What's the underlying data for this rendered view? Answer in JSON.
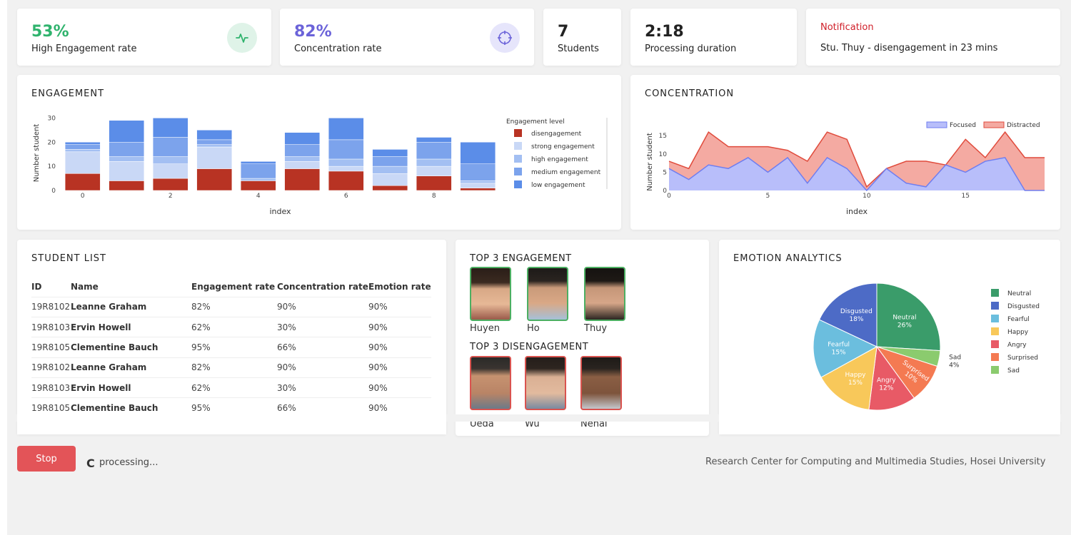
{
  "stats": {
    "engagement": {
      "value": "53%",
      "label": "High Engagement rate",
      "color": "#2fb36d"
    },
    "concentration": {
      "value": "82%",
      "label": "Concentration rate",
      "color": "#6b63d9"
    },
    "students": {
      "value": "7",
      "label": "Students"
    },
    "duration": {
      "value": "2:18",
      "label": "Processing duration"
    }
  },
  "notification": {
    "title": "Notification",
    "message": "Stu. Thuy - disengagement in 23 mins",
    "color": "#d0202a"
  },
  "engagement_title": "ENGAGEMENT",
  "concentration_title": "CONCENTRATION",
  "student_list": {
    "title": "STUDENT LIST",
    "columns": [
      "ID",
      "Name",
      "Engagement rate",
      "Concentration rate",
      "Emotion rate"
    ],
    "rows": [
      [
        "19R8102",
        "Leanne Graham",
        "82%",
        "90%",
        "90%"
      ],
      [
        "19R8103",
        "Ervin Howell",
        "62%",
        "30%",
        "90%"
      ],
      [
        "19R8105",
        "Clementine Bauch",
        "95%",
        "66%",
        "90%"
      ],
      [
        "19R8102",
        "Leanne Graham",
        "82%",
        "90%",
        "90%"
      ],
      [
        "19R8103",
        "Ervin Howell",
        "62%",
        "30%",
        "90%"
      ],
      [
        "19R8105",
        "Clementine Bauch",
        "95%",
        "66%",
        "90%"
      ]
    ]
  },
  "top_engagement": {
    "title": "TOP 3 ENGAGEMENT",
    "names": [
      "Huyen",
      "Ho",
      "Thuy"
    ]
  },
  "top_disengagement": {
    "title": "TOP 3 DISENGAGEMENT",
    "names": [
      "Ueda",
      "Wu",
      "Nehal"
    ]
  },
  "emotion_title": "EMOTION ANALYTICS",
  "controls": {
    "stop_label": "Stop",
    "spinner_glyph": "C",
    "status_text": "processing..."
  },
  "footer_text": "Research Center for Computing and Multimedia Studies, Hosei University",
  "chart_data": [
    {
      "type": "bar",
      "title": "",
      "xlabel": "index",
      "ylabel": "Number student",
      "legend_title": "Engagement level",
      "x": [
        0,
        1,
        2,
        3,
        4,
        5,
        6,
        7,
        8,
        9
      ],
      "xticks": [
        0,
        2,
        4,
        6,
        8
      ],
      "yticks": [
        0,
        10,
        20,
        30
      ],
      "ylim": [
        0,
        31
      ],
      "series": [
        {
          "name": "disengagement",
          "color": "#b83323",
          "values": [
            7,
            4,
            5,
            9,
            4,
            9,
            8,
            2,
            6,
            1
          ]
        },
        {
          "name": "strong engagement",
          "color": "#c9d8f6",
          "values": [
            9,
            8,
            6,
            9,
            0,
            3,
            2,
            5,
            4,
            2
          ]
        },
        {
          "name": "high engagement",
          "color": "#a3bff2",
          "values": [
            1,
            2,
            3,
            1,
            1,
            2,
            3,
            3,
            3,
            1
          ]
        },
        {
          "name": "medium engagement",
          "color": "#7ca3ec",
          "values": [
            2,
            6,
            8,
            2,
            6,
            5,
            8,
            4,
            7,
            7
          ]
        },
        {
          "name": "low engagement",
          "color": "#5b8de8",
          "values": [
            1,
            9,
            8,
            4,
            1,
            5,
            9,
            3,
            2,
            9
          ]
        }
      ]
    },
    {
      "type": "area",
      "title": "",
      "xlabel": "index",
      "ylabel": "Number student",
      "x": [
        0,
        1,
        2,
        3,
        4,
        5,
        6,
        7,
        8,
        9,
        10,
        11,
        12,
        13,
        14,
        15,
        16,
        17,
        18,
        19
      ],
      "xticks": [
        0,
        5,
        10,
        15
      ],
      "yticks": [
        0,
        5,
        10,
        15
      ],
      "ylim": [
        0,
        17
      ],
      "legend_position": "top-right",
      "series": [
        {
          "name": "Focused",
          "color": "#6f7ef0",
          "fill": "#b8befa",
          "values": [
            6,
            3,
            7,
            6,
            9,
            5,
            9,
            2,
            9,
            6,
            0,
            6,
            2,
            1,
            7,
            5,
            8,
            9,
            0,
            0
          ]
        },
        {
          "name": "Distracted",
          "color": "#e04b3c",
          "fill": "#f4aaa2",
          "values": [
            8,
            6,
            16,
            12,
            12,
            12,
            11,
            8,
            16,
            14,
            1,
            6,
            8,
            8,
            7,
            14,
            9,
            16,
            9,
            9
          ]
        }
      ]
    },
    {
      "type": "pie",
      "title": "",
      "slices": [
        {
          "label": "Neutral",
          "value": 26,
          "color": "#3a9c6a"
        },
        {
          "label": "Sad",
          "value": 4,
          "color": "#8bcb6e"
        },
        {
          "label": "Surprised",
          "value": 10,
          "color": "#f47a52"
        },
        {
          "label": "Angry",
          "value": 12,
          "color": "#e85a66"
        },
        {
          "label": "Happy",
          "value": 15,
          "color": "#f8c85a"
        },
        {
          "label": "Fearful",
          "value": 15,
          "color": "#6bbede"
        },
        {
          "label": "Disgusted",
          "value": 18,
          "color": "#4d6bc6"
        }
      ],
      "legend": [
        "Neutral",
        "Disgusted",
        "Fearful",
        "Happy",
        "Angry",
        "Surprised",
        "Sad"
      ]
    }
  ]
}
